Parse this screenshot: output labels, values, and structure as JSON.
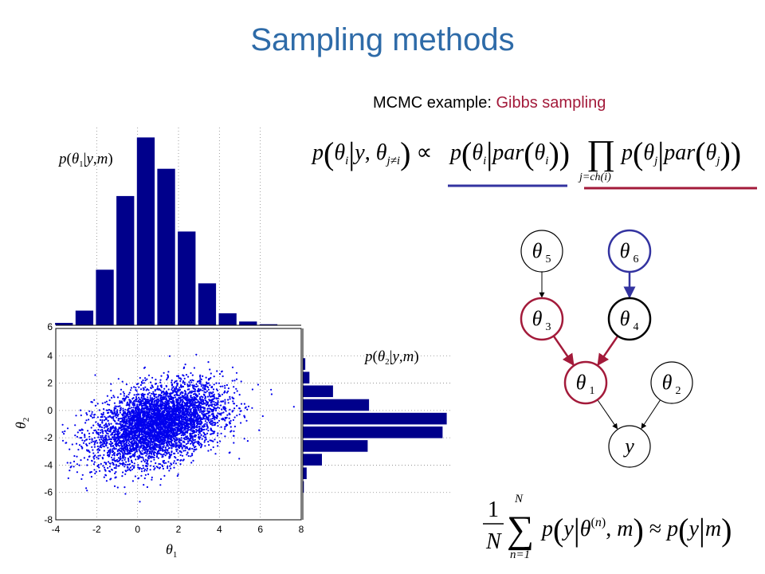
{
  "slide": {
    "title": "Sampling methods",
    "subtitle_prefix": "MCMC example: ",
    "subtitle_accent": "Gibbs sampling"
  },
  "colors": {
    "title": "#2e6ba8",
    "accent": "#a31a3a",
    "bar": "#00008b",
    "blue_node": "#3333a0",
    "red_node": "#a31a3a"
  },
  "formulas": {
    "gibbs_conditional": "p(θi | y, θj≠i) ∝ p(θi | par(θi)) ∏j=ch(i) p(θj | par(θj))",
    "monte_carlo": "1/N Σn=1..N p(y | θ(n), m) ≈ p(y | m)"
  },
  "graph": {
    "nodes": [
      {
        "id": "theta5",
        "label": "θ",
        "sub": "5",
        "style": "plain"
      },
      {
        "id": "theta6",
        "label": "θ",
        "sub": "6",
        "style": "blue"
      },
      {
        "id": "theta3",
        "label": "θ",
        "sub": "3",
        "style": "red"
      },
      {
        "id": "theta4",
        "label": "θ",
        "sub": "4",
        "style": "bold"
      },
      {
        "id": "theta1",
        "label": "θ",
        "sub": "1",
        "style": "red"
      },
      {
        "id": "theta2",
        "label": "θ",
        "sub": "2",
        "style": "plain"
      },
      {
        "id": "y",
        "label": "y",
        "sub": "",
        "style": "plain"
      }
    ],
    "edges": [
      {
        "from": "theta5",
        "to": "theta3",
        "style": "plain"
      },
      {
        "from": "theta6",
        "to": "theta4",
        "style": "blue"
      },
      {
        "from": "theta3",
        "to": "theta1",
        "style": "red"
      },
      {
        "from": "theta4",
        "to": "theta1",
        "style": "red"
      },
      {
        "from": "theta1",
        "to": "y",
        "style": "plain"
      },
      {
        "from": "theta2",
        "to": "y",
        "style": "plain"
      }
    ]
  },
  "chart_data": [
    {
      "type": "scatter",
      "title": "",
      "xlabel": "θ1",
      "ylabel": "θ2",
      "xlim": [
        -4,
        8
      ],
      "ylim": [
        -8,
        6
      ],
      "xticks": [
        -4,
        -2,
        0,
        2,
        4,
        6,
        8
      ],
      "yticks": [
        6,
        4,
        2,
        0,
        -2,
        -4,
        -6,
        -8
      ],
      "grid": true,
      "series": [
        {
          "description": "Gibbs samples of (θ1, θ2), roughly 5000 points, correlated cloud centred near (1, -1)",
          "mean": [
            1.0,
            -1.0
          ],
          "sd": [
            1.55,
            1.45
          ],
          "correlation": 0.4
        }
      ]
    },
    {
      "type": "bar",
      "title": "p(θ1|y,m)",
      "orientation": "vertical",
      "categories": [
        -3.6,
        -2.6,
        -1.6,
        -0.6,
        0.4,
        1.4,
        2.4,
        3.4,
        4.4,
        5.4,
        6.4,
        7.4
      ],
      "values": [
        2,
        11,
        41,
        95,
        138,
        115,
        69,
        31,
        9,
        3,
        1,
        0
      ],
      "grid": true
    },
    {
      "type": "bar",
      "title": "p(θ2|y,m)",
      "orientation": "horizontal",
      "categories": [
        3.4,
        2.4,
        1.4,
        0.4,
        -0.6,
        -1.6,
        -2.6,
        -3.6,
        -4.6,
        -5.6,
        -6.6
      ],
      "values": [
        2,
        5,
        22,
        48,
        104,
        101,
        47,
        14,
        3,
        1,
        0
      ],
      "grid": true
    }
  ]
}
